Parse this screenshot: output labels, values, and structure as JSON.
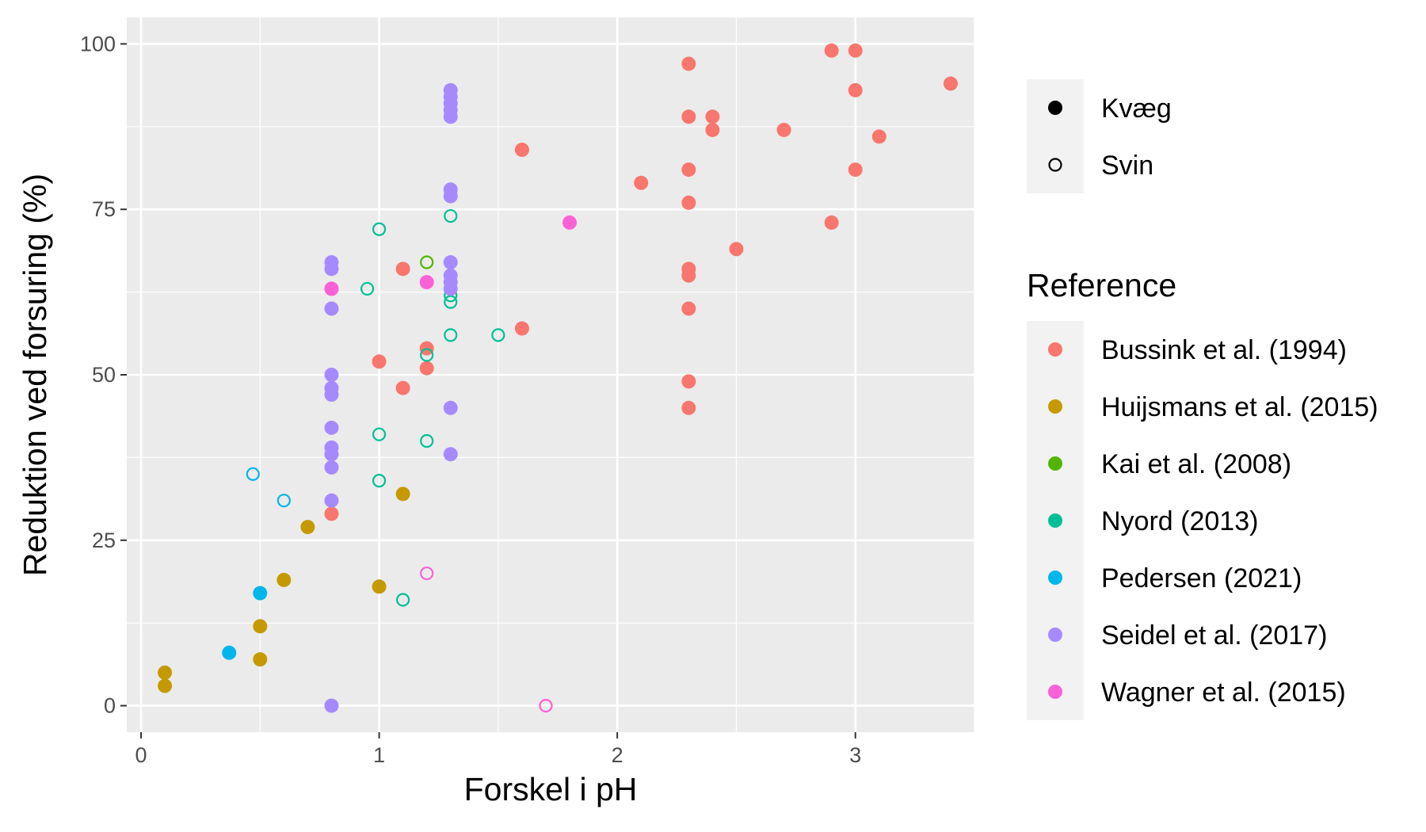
{
  "chart_data": {
    "type": "scatter",
    "xlabel": "Forskel i pH",
    "ylabel": "Reduktion ved forsuring (%)",
    "xlim": [
      -0.06,
      3.5
    ],
    "ylim": [
      -4,
      104
    ],
    "x_ticks": [
      0,
      1,
      2,
      3
    ],
    "y_ticks": [
      0,
      25,
      50,
      75,
      100
    ],
    "x_tick_labels": [
      "0",
      "1",
      "2",
      "3"
    ],
    "y_tick_labels": [
      "0",
      "25",
      "50",
      "75",
      "100"
    ],
    "grid": true,
    "legend_position": "right",
    "shape_legend": {
      "items": [
        {
          "label": "Kvæg",
          "shape": "filled-circle"
        },
        {
          "label": "Svin",
          "shape": "open-circle"
        }
      ]
    },
    "color_legend": {
      "title": "Reference",
      "items": [
        {
          "label": "Bussink et al. (1994)",
          "color": "#F8766D"
        },
        {
          "label": "Huijsmans et al. (2015)",
          "color": "#C49A00"
        },
        {
          "label": "Kai et al. (2008)",
          "color": "#53B400"
        },
        {
          "label": "Nyord (2013)",
          "color": "#00C094"
        },
        {
          "label": "Pedersen (2021)",
          "color": "#00B6EB"
        },
        {
          "label": "Seidel et al. (2017)",
          "color": "#A58AFF"
        },
        {
          "label": "Wagner et al. (2015)",
          "color": "#FB61D7"
        }
      ]
    },
    "series": [
      {
        "name": "Bussink et al. (1994)",
        "animal": "Kvæg",
        "color": "#F8766D",
        "points": [
          [
            0.8,
            29
          ],
          [
            0.8,
            63
          ],
          [
            1.0,
            52
          ],
          [
            1.1,
            48
          ],
          [
            1.1,
            66
          ],
          [
            1.2,
            51
          ],
          [
            1.2,
            54
          ],
          [
            1.6,
            57
          ],
          [
            1.6,
            84
          ],
          [
            2.1,
            79
          ],
          [
            2.3,
            97
          ],
          [
            2.3,
            89
          ],
          [
            2.3,
            81
          ],
          [
            2.3,
            76
          ],
          [
            2.3,
            66
          ],
          [
            2.3,
            65
          ],
          [
            2.3,
            60
          ],
          [
            2.3,
            49
          ],
          [
            2.3,
            45
          ],
          [
            2.4,
            89
          ],
          [
            2.4,
            87
          ],
          [
            2.5,
            69
          ],
          [
            2.7,
            87
          ],
          [
            2.9,
            99
          ],
          [
            2.9,
            73
          ],
          [
            3.0,
            99
          ],
          [
            3.0,
            93
          ],
          [
            3.0,
            81
          ],
          [
            3.1,
            86
          ],
          [
            3.4,
            94
          ]
        ]
      },
      {
        "name": "Huijsmans et al. (2015)",
        "animal": "Kvæg",
        "color": "#C49A00",
        "points": [
          [
            0.1,
            5
          ],
          [
            0.1,
            3
          ],
          [
            0.5,
            12
          ],
          [
            0.5,
            7
          ],
          [
            0.6,
            19
          ],
          [
            0.7,
            27
          ],
          [
            1.0,
            18
          ],
          [
            1.1,
            32
          ]
        ]
      },
      {
        "name": "Kai et al. (2008)",
        "animal": "Svin",
        "color": "#53B400",
        "points": [
          [
            1.2,
            67
          ]
        ]
      },
      {
        "name": "Nyord (2013)",
        "animal": "Svin",
        "color": "#00C094",
        "points": [
          [
            0.95,
            63
          ],
          [
            1.0,
            72
          ],
          [
            1.0,
            41
          ],
          [
            1.0,
            34
          ],
          [
            1.1,
            16
          ],
          [
            1.2,
            53
          ],
          [
            1.2,
            40
          ],
          [
            1.3,
            74
          ],
          [
            1.3,
            62
          ],
          [
            1.3,
            61
          ],
          [
            1.3,
            56
          ],
          [
            1.5,
            56
          ]
        ]
      },
      {
        "name": "Pedersen (2021)",
        "animal": "Svin",
        "color": "#00B6EB",
        "points": [
          [
            0.47,
            35
          ],
          [
            0.6,
            31
          ]
        ]
      },
      {
        "name": "Pedersen (2021)",
        "animal": "Kvæg",
        "color": "#00B6EB",
        "points": [
          [
            0.37,
            8
          ],
          [
            0.5,
            17
          ]
        ]
      },
      {
        "name": "Seidel et al. (2017)",
        "animal": "Kvæg",
        "color": "#A58AFF",
        "points": [
          [
            0.8,
            67
          ],
          [
            0.8,
            66
          ],
          [
            0.8,
            60
          ],
          [
            0.8,
            50
          ],
          [
            0.8,
            48
          ],
          [
            0.8,
            47
          ],
          [
            0.8,
            42
          ],
          [
            0.8,
            39
          ],
          [
            0.8,
            38
          ],
          [
            0.8,
            36
          ],
          [
            0.8,
            31
          ],
          [
            0.8,
            0
          ],
          [
            1.3,
            93
          ],
          [
            1.3,
            92
          ],
          [
            1.3,
            91
          ],
          [
            1.3,
            90
          ],
          [
            1.3,
            89
          ],
          [
            1.3,
            78
          ],
          [
            1.3,
            77
          ],
          [
            1.3,
            67
          ],
          [
            1.3,
            65
          ],
          [
            1.3,
            64
          ],
          [
            1.3,
            63
          ],
          [
            1.3,
            45
          ],
          [
            1.3,
            38
          ]
        ]
      },
      {
        "name": "Wagner et al. (2015)",
        "animal": "Kvæg",
        "color": "#FB61D7",
        "points": [
          [
            0.8,
            63
          ],
          [
            1.2,
            64
          ],
          [
            1.8,
            73
          ]
        ]
      },
      {
        "name": "Wagner et al. (2015)",
        "animal": "Svin",
        "color": "#FB61D7",
        "points": [
          [
            1.2,
            20
          ],
          [
            1.7,
            0
          ]
        ]
      }
    ]
  }
}
